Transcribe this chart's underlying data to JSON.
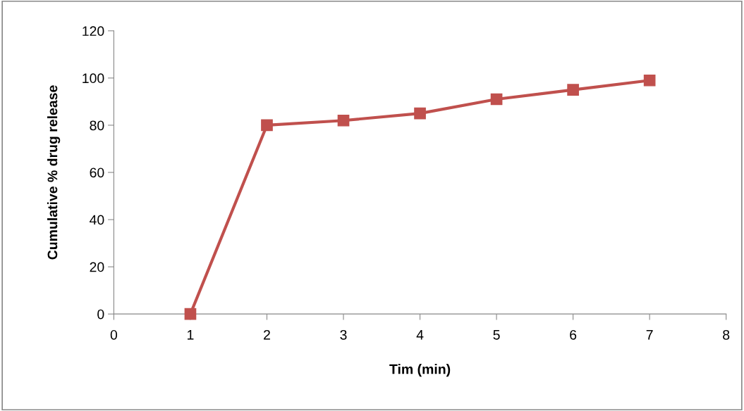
{
  "chart_data": {
    "type": "line",
    "xlabel": "Tim (min)",
    "ylabel": "Cumulative % drug release",
    "x": [
      1,
      2,
      3,
      4,
      5,
      6,
      7
    ],
    "series": [
      {
        "color": "#c0504d",
        "values": [
          0,
          80,
          82,
          85,
          91,
          95,
          99
        ]
      }
    ],
    "xlim": [
      0,
      8
    ],
    "xticks": [
      0,
      1,
      2,
      3,
      4,
      5,
      6,
      7,
      8
    ],
    "ylim": [
      0,
      120
    ],
    "yticks": [
      0,
      20,
      40,
      60,
      80,
      100,
      120
    ],
    "grid": false,
    "marker": "square",
    "line_style": "solid"
  }
}
